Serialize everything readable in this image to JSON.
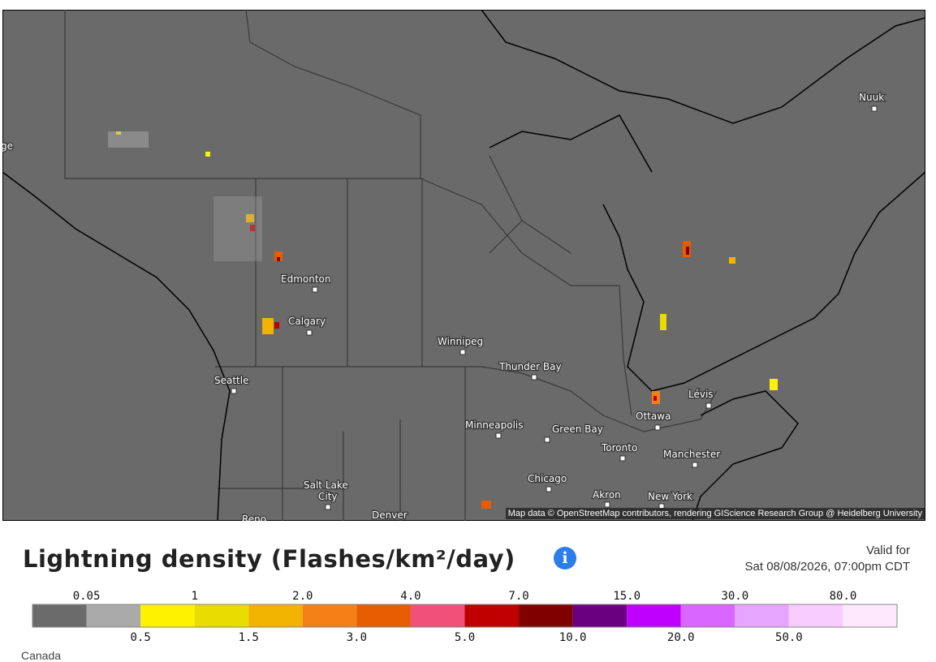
{
  "map": {
    "labels": [
      "ge",
      "Nuuk",
      "Edmonton",
      "Calgary",
      "Winnipeg",
      "Thunder Bay",
      "Seattle",
      "Minneapolis",
      "Green Bay",
      "Lévis",
      "Ottawa",
      "Toronto",
      "Manchester",
      "Chicago",
      "Salt Lake",
      "City",
      "Akron",
      "New York",
      "Denver",
      "Reno"
    ],
    "attribution": "Map data © OpenStreetMap contributors, rendering GIScience Research Group @ Heidelberg University"
  },
  "legend": {
    "title": "Lightning density (Flashes/km²/day)",
    "valid_label": "Valid for",
    "valid_time": "Sat 08/08/2026, 07:00pm CDT",
    "colors": [
      "#6b6b6b",
      "#aaaaaa",
      "#fef200",
      "#e8dc00",
      "#f2b200",
      "#f57f17",
      "#e65c00",
      "#f0507a",
      "#c00000",
      "#800000",
      "#6a0080",
      "#c000ff",
      "#d966ff",
      "#e6a6ff",
      "#f9ccff",
      "#fde8fd"
    ],
    "upper_labels": [
      "0.05",
      "1",
      "2.0",
      "4.0",
      "7.0",
      "15.0",
      "30.0",
      "80.0"
    ],
    "lower_labels": [
      "0.5",
      "1.5",
      "3.0",
      "5.0",
      "10.0",
      "20.0",
      "50.0"
    ]
  },
  "footer": {
    "region": "Canada"
  }
}
